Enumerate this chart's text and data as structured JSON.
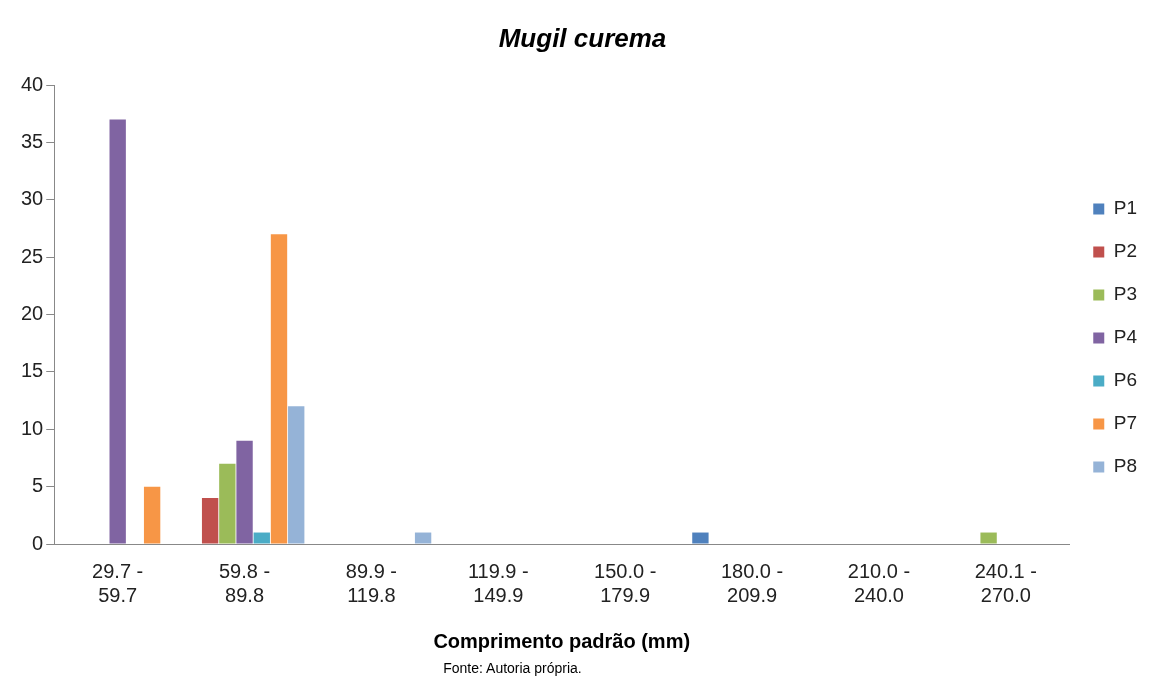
{
  "chart_data": {
    "type": "bar",
    "title": "Mugil curema",
    "xlabel": "Comprimento padrão (mm)",
    "annotations": [
      "Fonte: Autoria própria."
    ],
    "categories": [
      "29.7 - 59.7",
      "59.8 - 89.8",
      "89.9 - 119.8",
      "119.9 - 149.9",
      "150.0 - 179.9",
      "180.0 - 209.9",
      "210.0 - 240.0",
      "240.1 - 270.0"
    ],
    "series": [
      {
        "name": "P1",
        "color": "#4f81bd",
        "values": [
          0,
          0,
          0,
          0,
          0,
          1,
          0,
          0
        ]
      },
      {
        "name": "P2",
        "color": "#c0504d",
        "values": [
          0,
          4,
          0,
          0,
          0,
          0,
          0,
          0
        ]
      },
      {
        "name": "P3",
        "color": "#9bbb59",
        "values": [
          0,
          7,
          0,
          0,
          0,
          0,
          0,
          1
        ]
      },
      {
        "name": "P4",
        "color": "#8064a2",
        "values": [
          37,
          9,
          0,
          0,
          0,
          0,
          0,
          0
        ]
      },
      {
        "name": "P6",
        "color": "#4bacc6",
        "values": [
          0,
          1,
          0,
          0,
          0,
          0,
          0,
          0
        ]
      },
      {
        "name": "P7",
        "color": "#f79646",
        "values": [
          5,
          27,
          0,
          0,
          0,
          0,
          0,
          0
        ]
      },
      {
        "name": "P8",
        "color": "#95b3d7",
        "values": [
          0,
          12,
          1,
          0,
          0,
          0,
          0,
          0
        ]
      }
    ],
    "ylim": [
      0,
      40
    ],
    "yticks": [
      0,
      5,
      10,
      15,
      20,
      25,
      30,
      35,
      40
    ],
    "grid": false,
    "legend": "right"
  }
}
